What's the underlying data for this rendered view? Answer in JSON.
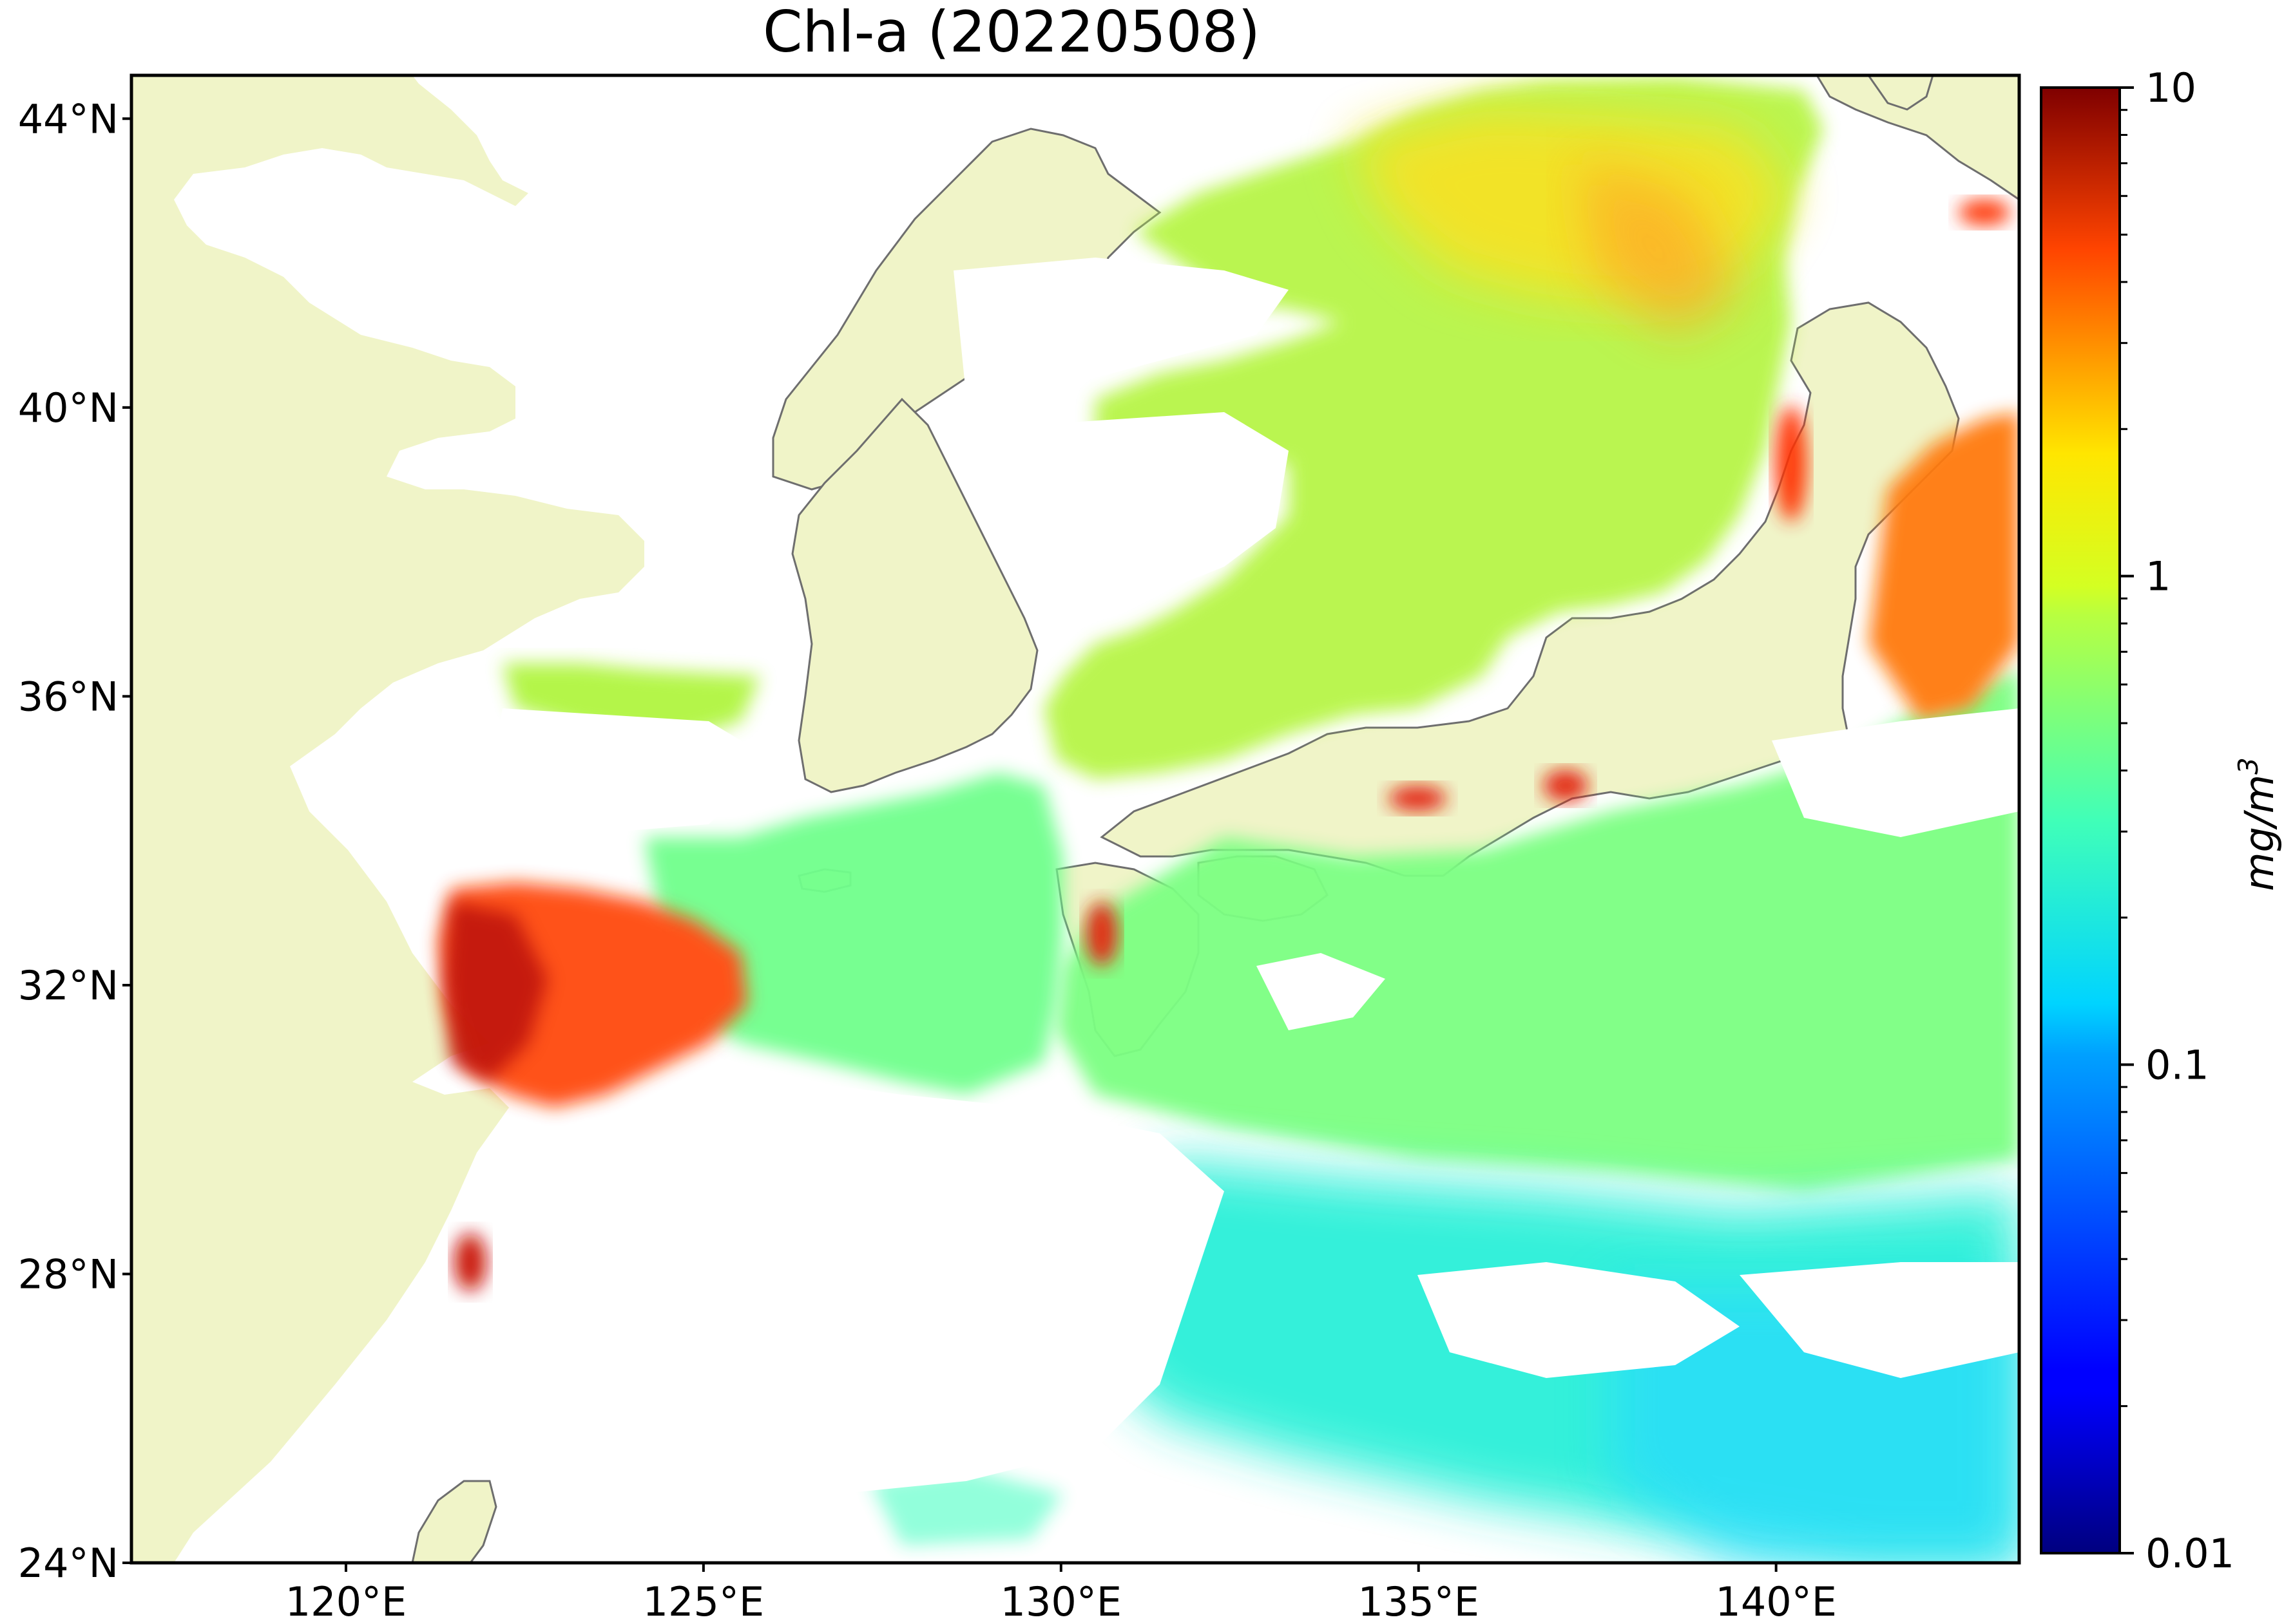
{
  "title": "Chl-a (20220508)",
  "map": {
    "lon_range": [
      117,
      143.4
    ],
    "lat_range": [
      24,
      44.6
    ],
    "land_color": "#f0f4c8",
    "no_data_color": "#ffffff",
    "coastline_color": "#6e6e6e",
    "lon_ticks": [
      {
        "value": 120,
        "label": "120°E"
      },
      {
        "value": 125,
        "label": "125°E"
      },
      {
        "value": 130,
        "label": "130°E"
      },
      {
        "value": 135,
        "label": "135°E"
      },
      {
        "value": 140,
        "label": "140°E"
      }
    ],
    "lat_ticks": [
      {
        "value": 44,
        "label": "44°N"
      },
      {
        "value": 40,
        "label": "40°N"
      },
      {
        "value": 36,
        "label": "36°N"
      },
      {
        "value": 32,
        "label": "32°N"
      },
      {
        "value": 28,
        "label": "28°N"
      },
      {
        "value": 24,
        "label": "24°N"
      }
    ]
  },
  "colorbar": {
    "scale": "log",
    "min": 0.01,
    "max": 10,
    "colormap": "jet",
    "tick_labels": [
      {
        "value": 10,
        "label": "10"
      },
      {
        "value": 1,
        "label": "1"
      },
      {
        "value": 0.1,
        "label": "0.1"
      },
      {
        "value": 0.01,
        "label": "0.01"
      }
    ],
    "unit_label": "mg/m",
    "unit_exponent": "3"
  }
}
